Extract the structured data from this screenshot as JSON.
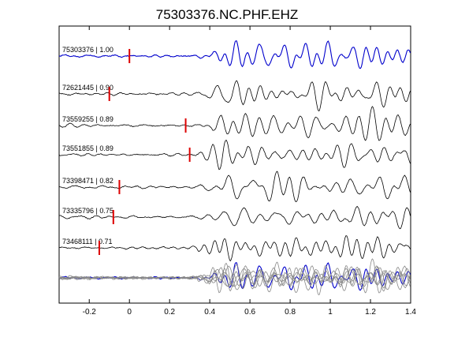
{
  "chart_data": {
    "type": "line",
    "title": "75303376.NC.PHF.EHZ",
    "xlabel": "",
    "ylabel": "",
    "xlim": [
      -0.35,
      1.4
    ],
    "x_ticks": [
      "-0.2",
      "0",
      "0.2",
      "0.4",
      "0.6",
      "0.8",
      "1",
      "1.2",
      "1.4"
    ],
    "x_tick_values": [
      -0.2,
      0,
      0.2,
      0.4,
      0.6,
      0.8,
      1.0,
      1.2,
      1.4
    ],
    "grid": false,
    "colors": {
      "reference": "#0000cc",
      "trace": "#000000",
      "pick": "#dd0000",
      "stack": "#888888"
    },
    "series": [
      {
        "name": "75303376 | 1.00",
        "id": "75303376",
        "cc": "1.00",
        "pick_time": 0.0,
        "color": "#0000cc"
      },
      {
        "name": "72621445 | 0.90",
        "id": "72621445",
        "cc": "0.90",
        "pick_time": -0.1,
        "color": "#000000"
      },
      {
        "name": "73559255 | 0.89",
        "id": "73559255",
        "cc": "0.89",
        "pick_time": 0.28,
        "color": "#000000"
      },
      {
        "name": "73551855 | 0.89",
        "id": "73551855",
        "cc": "0.89",
        "pick_time": 0.3,
        "color": "#000000"
      },
      {
        "name": "73398471 | 0.82",
        "id": "73398471",
        "cc": "0.82",
        "pick_time": -0.05,
        "color": "#000000"
      },
      {
        "name": "73335796 | 0.75",
        "id": "73335796",
        "cc": "0.75",
        "pick_time": -0.08,
        "color": "#000000"
      },
      {
        "name": "73468111 | 0.71",
        "id": "73468111",
        "cc": "0.71",
        "pick_time": -0.15,
        "color": "#000000"
      }
    ],
    "stack": {
      "overlay_count": 7
    }
  }
}
